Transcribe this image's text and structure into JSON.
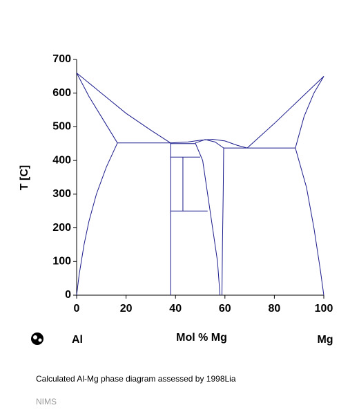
{
  "chart_data": {
    "type": "line",
    "ylabel": "T [C]",
    "xlabel": "Mol % Mg",
    "left_element": "Al",
    "right_element": "Mg",
    "caption": "Calculated Al-Mg phase diagram assessed by 1998Lia",
    "source": "NIMS",
    "xlim": [
      0,
      100
    ],
    "xticks": [
      0,
      20,
      40,
      60,
      80,
      100
    ],
    "ylim": [
      0,
      700
    ],
    "yticks": [
      0,
      100,
      200,
      300,
      400,
      500,
      600,
      700
    ],
    "series": [
      {
        "color": "#1a1a8c",
        "x": [
          0,
          10,
          20,
          30,
          38
        ],
        "values": [
          660,
          600,
          540,
          490,
          452
        ]
      },
      {
        "color": "#1a1a8c",
        "x": [
          0,
          5,
          10,
          16.5
        ],
        "values": [
          660,
          590,
          530,
          452
        ]
      },
      {
        "color": "#1a1a8c",
        "x": [
          16.5,
          12,
          8,
          5,
          3,
          1,
          0
        ],
        "values": [
          452,
          380,
          300,
          220,
          150,
          60,
          0
        ]
      },
      {
        "color": "#1a1a8c",
        "x": [
          16.5,
          38
        ],
        "values": [
          452,
          452
        ]
      },
      {
        "color": "#1a1a8c",
        "x": [
          38,
          45,
          50,
          55,
          60,
          65,
          69
        ],
        "values": [
          452,
          455,
          460,
          463,
          458,
          445,
          437
        ]
      },
      {
        "color": "#1a1a8c",
        "x": [
          69,
          80,
          90,
          100
        ],
        "values": [
          437,
          510,
          580,
          650
        ]
      },
      {
        "color": "#1a1a8c",
        "x": [
          88.5,
          92,
          96,
          100
        ],
        "values": [
          437,
          530,
          600,
          650
        ]
      },
      {
        "color": "#1a1a8c",
        "x": [
          88.5,
          93,
          96,
          98.5,
          100
        ],
        "values": [
          437,
          320,
          200,
          80,
          0
        ]
      },
      {
        "color": "#1a1a8c",
        "x": [
          59.5,
          88.5
        ],
        "values": [
          437,
          437
        ]
      },
      {
        "color": "#1a1a8c",
        "x": [
          38,
          38
        ],
        "values": [
          452,
          0
        ]
      },
      {
        "color": "#1a1a8c",
        "x": [
          38,
          48
        ],
        "values": [
          450,
          450
        ]
      },
      {
        "color": "#1a1a8c",
        "x": [
          38,
          50
        ],
        "values": [
          410,
          410
        ]
      },
      {
        "color": "#1a1a8c",
        "x": [
          38,
          53
        ],
        "values": [
          250,
          250
        ]
      },
      {
        "color": "#1a1a8c",
        "x": [
          43,
          43
        ],
        "values": [
          410,
          250
        ]
      },
      {
        "color": "#1a1a8c",
        "x": [
          48,
          51,
          53,
          55,
          57,
          58
        ],
        "values": [
          452,
          400,
          300,
          200,
          100,
          0
        ]
      },
      {
        "color": "#1a1a8c",
        "x": [
          48,
          52,
          56,
          59.5
        ],
        "values": [
          452,
          462,
          455,
          437
        ]
      },
      {
        "color": "#1a1a8c",
        "x": [
          59.5,
          59.3,
          59,
          58.8
        ],
        "values": [
          437,
          300,
          150,
          0
        ]
      }
    ]
  }
}
